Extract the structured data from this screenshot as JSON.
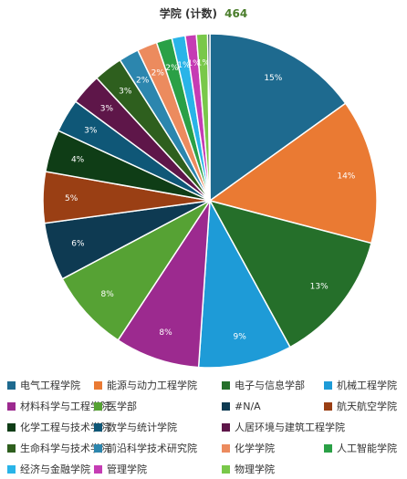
{
  "title": {
    "label": "学院 (计数)",
    "count": "464"
  },
  "chart_data": {
    "type": "pie",
    "title": "学院 (计数)",
    "total": 464,
    "slices": [
      {
        "name": "电气工程学院",
        "value": 70,
        "percent_label": "15%",
        "color": "#1e6a8f"
      },
      {
        "name": "能源与动力工程学院",
        "value": 65,
        "percent_label": "14%",
        "color": "#ea7a33"
      },
      {
        "name": "电子与信息学部",
        "value": 60,
        "percent_label": "13%",
        "color": "#256f2a"
      },
      {
        "name": "机械工程学院",
        "value": 42,
        "percent_label": "9%",
        "color": "#1e9bd7"
      },
      {
        "name": "材料科学与工程学院",
        "value": 38,
        "percent_label": "8%",
        "color": "#9c2a8f"
      },
      {
        "name": "医学部",
        "value": 37,
        "percent_label": "8%",
        "color": "#56a234"
      },
      {
        "name": "#N/A",
        "value": 26,
        "percent_label": "6%",
        "color": "#0e3a52"
      },
      {
        "name": "航天航空学院",
        "value": 23,
        "percent_label": "5%",
        "color": "#9a3f14"
      },
      {
        "name": "化学工程与技术学院",
        "value": 19,
        "percent_label": "4%",
        "color": "#0f3d16"
      },
      {
        "name": "数学与统计学院",
        "value": 15,
        "percent_label": "3%",
        "color": "#0f5777"
      },
      {
        "name": "人居环境与建筑工程学院",
        "value": 14,
        "percent_label": "3%",
        "color": "#5e1649"
      },
      {
        "name": "生命科学与技术学院",
        "value": 13,
        "percent_label": "3%",
        "color": "#2e5f1e"
      },
      {
        "name": "前沿科学技术研究院",
        "value": 9,
        "percent_label": "2%",
        "color": "#2c86ae"
      },
      {
        "name": "化学学院",
        "value": 9,
        "percent_label": "2%",
        "color": "#ec8b5e"
      },
      {
        "name": "人工智能学院",
        "value": 7,
        "percent_label": "2%",
        "color": "#2aa046"
      },
      {
        "name": "经济与金融学院",
        "value": 6,
        "percent_label": "1%",
        "color": "#29b4e8"
      },
      {
        "name": "管理学院",
        "value": 5,
        "percent_label": "1%",
        "color": "#c53cb4"
      },
      {
        "name": "物理学院",
        "value": 5,
        "percent_label": "1%",
        "color": "#79c84a"
      },
      {
        "name": "",
        "value": 1,
        "percent_label": "",
        "color": "#0b2f40"
      }
    ]
  },
  "legend": {
    "rows": [
      [
        "电气工程学院",
        "能源与动力工程学院",
        "电子与信息学部",
        "机械工程学院"
      ],
      [
        "材料科学与工程学院",
        "医学部",
        "#N/A",
        "航天航空学院"
      ],
      [
        "化学工程与技术学院",
        "数学与统计学院",
        "人居环境与建筑工程学院"
      ],
      [
        "生命科学与技术学院",
        "前沿科学技术研究院",
        "化学学院",
        "人工智能学院"
      ],
      [
        "经济与金融学院",
        "管理学院",
        "物理学院"
      ]
    ],
    "more": "..."
  }
}
